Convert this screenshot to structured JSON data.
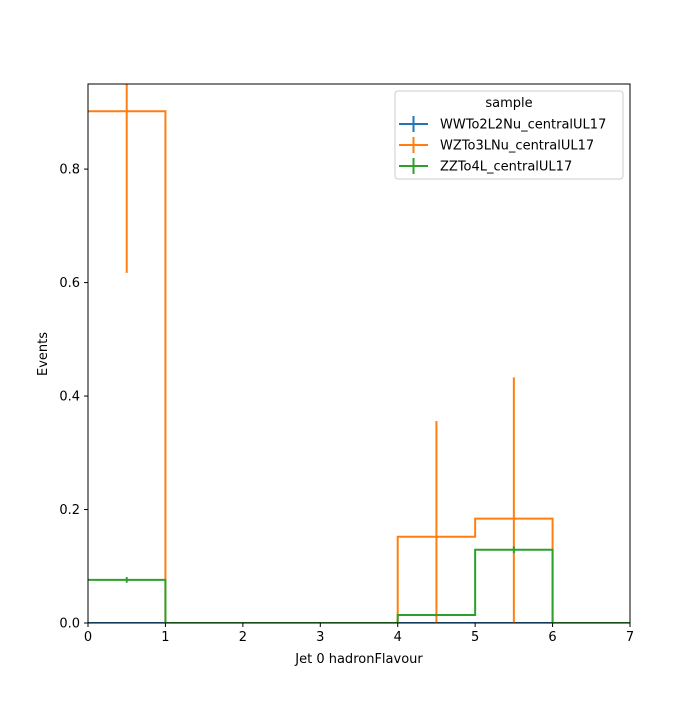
{
  "chart_data": {
    "type": "histogram-step",
    "xlabel": "Jet 0 hadronFlavour",
    "ylabel": "Events",
    "xlim": [
      0,
      7
    ],
    "ylim": [
      0,
      0.95
    ],
    "xticks": [
      "0",
      "1",
      "2",
      "3",
      "4",
      "5",
      "6",
      "7"
    ],
    "yticks": [
      "0.0",
      "0.2",
      "0.4",
      "0.6",
      "0.8"
    ],
    "bin_edges": [
      0,
      1,
      2,
      3,
      4,
      5,
      6,
      7
    ],
    "legend": {
      "title": "sample",
      "position": "top-right"
    },
    "series": [
      {
        "name": "WWTo2L2Nu_centralUL17",
        "color": "#1f77b4",
        "values": [
          0,
          0,
          0,
          0,
          0,
          0,
          0
        ],
        "errors": [
          0,
          0,
          0,
          0,
          0,
          0,
          0
        ]
      },
      {
        "name": "WZTo3LNu_centralUL17",
        "color": "#ff7f0e",
        "values": [
          0.902,
          0,
          0,
          0,
          0.152,
          0.184,
          0
        ],
        "errors": [
          0.285,
          0,
          0,
          0,
          0.204,
          0.249,
          0
        ]
      },
      {
        "name": "ZZTo4L_centralUL17",
        "color": "#2ca02c",
        "values": [
          0.076,
          0,
          0,
          0,
          0.014,
          0.129,
          0
        ],
        "errors": [
          0.005,
          0,
          0,
          0,
          0.002,
          0.006,
          0
        ]
      }
    ]
  }
}
